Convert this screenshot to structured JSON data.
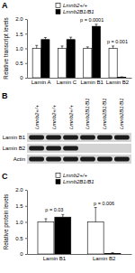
{
  "panel_labels": [
    "A",
    "B",
    "C"
  ],
  "chart_data": [
    {
      "type": "bar",
      "y_label": "Relative transcript levels",
      "categories": [
        "Lamin A",
        "Lamin C",
        "Lamin B1",
        "Lamin B2"
      ],
      "series": [
        {
          "name": "Lmnb2+/+",
          "color": "#ffffff",
          "values": [
            1.0,
            1.0,
            1.0,
            1.0
          ],
          "errors": [
            0.1,
            0.08,
            0.05,
            0.08
          ]
        },
        {
          "name": "Lmnb2B1/B1",
          "color": "#000000",
          "values": [
            1.3,
            1.3,
            1.75,
            0.02
          ],
          "errors": [
            0.07,
            0.08,
            0.07,
            0.01
          ]
        }
      ],
      "ylim": [
        0,
        2
      ],
      "yticks": [
        0,
        0.5,
        {
          "value": 1,
          "label": "1.0"
        },
        1.5,
        {
          "value": 2,
          "label": "2.0"
        }
      ],
      "legend": "top",
      "annotations": [
        {
          "text": "p = 0.0001",
          "category": "Lamin B1"
        },
        {
          "text": "p = 0.001",
          "category": "Lamin B2"
        }
      ]
    },
    {
      "type": "bar",
      "y_label": "Relative protein levels",
      "categories": [
        "Lamin B1",
        "Lamin B2"
      ],
      "series": [
        {
          "name": "Lmnb2+/+",
          "color": "#ffffff",
          "values": [
            1.0,
            1.0
          ],
          "errors": [
            0.1,
            0.45
          ]
        },
        {
          "name": "Lmnb2B1/B1",
          "color": "#000000",
          "values": [
            1.15,
            0.02
          ],
          "errors": [
            0.08,
            0.02
          ]
        }
      ],
      "ylim": [
        0,
        2
      ],
      "yticks": [
        0,
        0.5,
        {
          "value": 1,
          "label": "1.0"
        },
        1.5,
        {
          "value": 2,
          "label": "2.0"
        }
      ],
      "legend": "top",
      "annotations": [
        {
          "text": "p = 0.03",
          "category": "Lamin B1"
        },
        {
          "text": "p = 0.006",
          "category": "Lamin B2"
        }
      ]
    }
  ],
  "blot": {
    "lanes": [
      "Lmnb2+/+",
      "Lmnb2+/+",
      "Lmnb2+/+",
      "Lmnb2B1/B1",
      "Lmnb2B1/B1",
      "Lmnb2B1/B1"
    ],
    "rows": [
      "Lamin B1",
      "Lamin B2",
      "Actin"
    ],
    "bands": [
      [
        1,
        1,
        1,
        1,
        1,
        1
      ],
      [
        1,
        1,
        1,
        0,
        0,
        0
      ],
      [
        1,
        1,
        1,
        1,
        1,
        1
      ]
    ]
  }
}
